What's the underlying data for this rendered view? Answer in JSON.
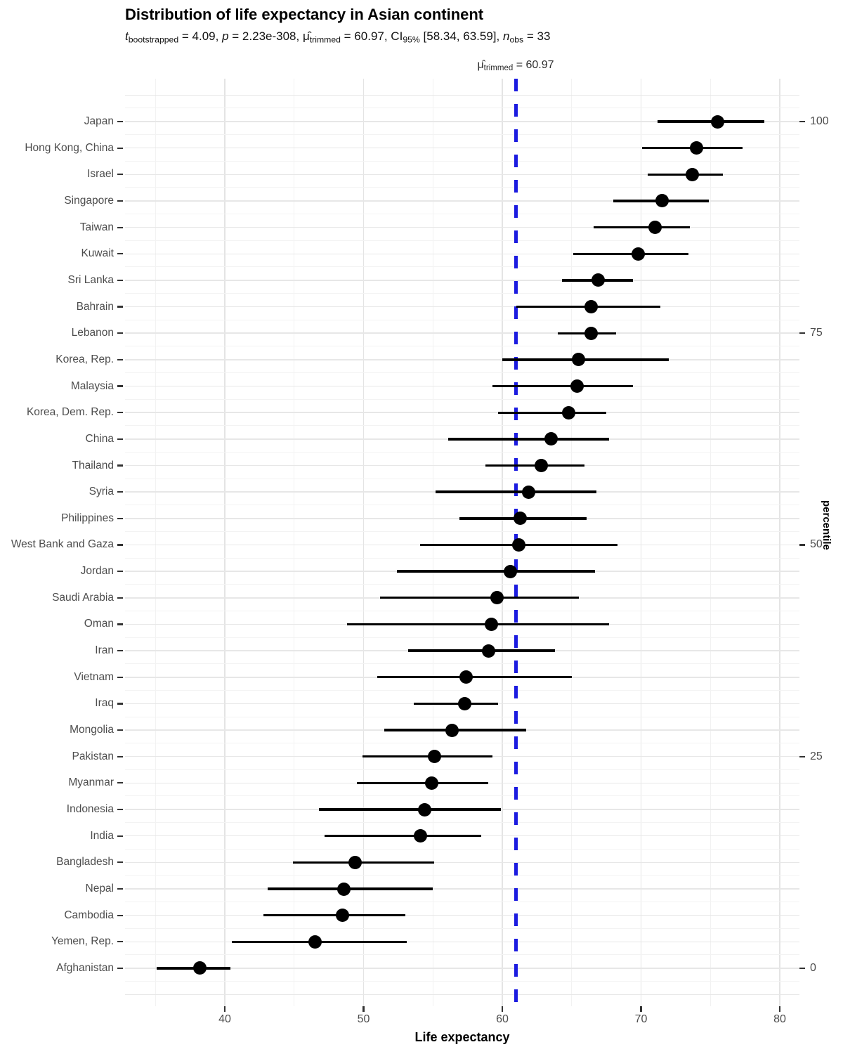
{
  "title": "Distribution of life expectancy in Asian continent",
  "subtitle_parts": [
    {
      "t": "t",
      "s": "i"
    },
    {
      "t": "bootstrapped",
      "s": "sub"
    },
    {
      "t": " = 4.09, ",
      "s": ""
    },
    {
      "t": "p",
      "s": "i"
    },
    {
      "t": " = 2.23e-308, ",
      "s": ""
    },
    {
      "t": "μ̂",
      "s": ""
    },
    {
      "t": "trimmed",
      "s": "sub"
    },
    {
      "t": " = 60.97, CI",
      "s": ""
    },
    {
      "t": "95%",
      "s": "sub"
    },
    {
      "t": " [58.34, 63.59], ",
      "s": ""
    },
    {
      "t": "n",
      "s": "i"
    },
    {
      "t": "obs",
      "s": "sub"
    },
    {
      "t": " = 33",
      "s": ""
    }
  ],
  "annotation_parts": [
    {
      "t": "μ̂",
      "s": ""
    },
    {
      "t": "trimmed",
      "s": "sub"
    },
    {
      "t": " = 60.97",
      "s": ""
    }
  ],
  "colors": {
    "point": "#000000",
    "ci_line": "#000000",
    "reference_line": "#1b1be0",
    "grid_major": "#e4e4e4",
    "grid_minor": "#f2f2f2",
    "axis_text": "#4d4d4d",
    "title_text": "#000000"
  },
  "chart_data": {
    "type": "scatter",
    "title": "Distribution of life expectancy in Asian continent",
    "subtitle": "t bootstrapped = 4.09, p = 2.23e-308, μ̂ trimmed = 60.97, CI 95% [58.34, 63.59], n obs = 33",
    "xlabel": "Life expectancy",
    "right_axis_label": "percentile",
    "x_ticks": [
      40,
      50,
      60,
      70,
      80
    ],
    "x_minor": [
      35,
      45,
      55,
      65,
      75
    ],
    "xlim": [
      32.8,
      81.5
    ],
    "grid": true,
    "reference_line": {
      "value": 60.97,
      "label": "μ̂ trimmed = 60.97"
    },
    "right_axis_ticks": [
      100,
      75,
      50,
      25,
      0
    ],
    "series": [
      {
        "country": "Japan",
        "estimate": 75.5,
        "ci_low": 71.2,
        "ci_high": 78.9
      },
      {
        "country": "Hong Kong, China",
        "estimate": 74.0,
        "ci_low": 70.1,
        "ci_high": 77.3
      },
      {
        "country": "Israel",
        "estimate": 73.7,
        "ci_low": 70.5,
        "ci_high": 75.9
      },
      {
        "country": "Singapore",
        "estimate": 71.5,
        "ci_low": 68.0,
        "ci_high": 74.9
      },
      {
        "country": "Taiwan",
        "estimate": 71.0,
        "ci_low": 66.6,
        "ci_high": 73.5
      },
      {
        "country": "Kuwait",
        "estimate": 69.8,
        "ci_low": 65.1,
        "ci_high": 73.4
      },
      {
        "country": "Sri Lanka",
        "estimate": 66.9,
        "ci_low": 64.3,
        "ci_high": 69.4
      },
      {
        "country": "Bahrain",
        "estimate": 66.4,
        "ci_low": 61.0,
        "ci_high": 71.4
      },
      {
        "country": "Lebanon",
        "estimate": 66.4,
        "ci_low": 64.0,
        "ci_high": 68.2
      },
      {
        "country": "Korea, Rep.",
        "estimate": 65.5,
        "ci_low": 60.0,
        "ci_high": 72.0
      },
      {
        "country": "Malaysia",
        "estimate": 65.4,
        "ci_low": 59.3,
        "ci_high": 69.4
      },
      {
        "country": "Korea, Dem. Rep.",
        "estimate": 64.8,
        "ci_low": 59.7,
        "ci_high": 67.5
      },
      {
        "country": "China",
        "estimate": 63.5,
        "ci_low": 56.1,
        "ci_high": 67.7
      },
      {
        "country": "Thailand",
        "estimate": 62.8,
        "ci_low": 58.8,
        "ci_high": 65.9
      },
      {
        "country": "Syria",
        "estimate": 61.9,
        "ci_low": 55.2,
        "ci_high": 66.8
      },
      {
        "country": "Philippines",
        "estimate": 61.3,
        "ci_low": 56.9,
        "ci_high": 66.1
      },
      {
        "country": "West Bank and Gaza",
        "estimate": 61.2,
        "ci_low": 54.1,
        "ci_high": 68.3
      },
      {
        "country": "Jordan",
        "estimate": 60.6,
        "ci_low": 52.4,
        "ci_high": 66.7
      },
      {
        "country": "Saudi Arabia",
        "estimate": 59.6,
        "ci_low": 51.2,
        "ci_high": 65.5
      },
      {
        "country": "Oman",
        "estimate": 59.2,
        "ci_low": 48.8,
        "ci_high": 67.7
      },
      {
        "country": "Iran",
        "estimate": 59.0,
        "ci_low": 53.2,
        "ci_high": 63.8
      },
      {
        "country": "Vietnam",
        "estimate": 57.4,
        "ci_low": 51.0,
        "ci_high": 65.0
      },
      {
        "country": "Iraq",
        "estimate": 57.3,
        "ci_low": 53.6,
        "ci_high": 59.7
      },
      {
        "country": "Mongolia",
        "estimate": 56.4,
        "ci_low": 51.5,
        "ci_high": 61.7
      },
      {
        "country": "Pakistan",
        "estimate": 55.1,
        "ci_low": 49.9,
        "ci_high": 59.3
      },
      {
        "country": "Myanmar",
        "estimate": 54.9,
        "ci_low": 49.5,
        "ci_high": 59.0
      },
      {
        "country": "Indonesia",
        "estimate": 54.4,
        "ci_low": 46.8,
        "ci_high": 59.9
      },
      {
        "country": "India",
        "estimate": 54.1,
        "ci_low": 47.2,
        "ci_high": 58.5
      },
      {
        "country": "Bangladesh",
        "estimate": 49.4,
        "ci_low": 44.9,
        "ci_high": 55.1
      },
      {
        "country": "Nepal",
        "estimate": 48.6,
        "ci_low": 43.1,
        "ci_high": 55.0
      },
      {
        "country": "Cambodia",
        "estimate": 48.5,
        "ci_low": 42.8,
        "ci_high": 53.0
      },
      {
        "country": "Yemen, Rep.",
        "estimate": 46.5,
        "ci_low": 40.5,
        "ci_high": 53.1
      },
      {
        "country": "Afghanistan",
        "estimate": 38.2,
        "ci_low": 35.1,
        "ci_high": 40.4
      }
    ]
  }
}
